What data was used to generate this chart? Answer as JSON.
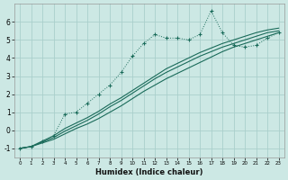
{
  "xlabel": "Humidex (Indice chaleur)",
  "xlim": [
    -0.5,
    23.5
  ],
  "ylim": [
    -1.5,
    7.0
  ],
  "xticks": [
    0,
    1,
    2,
    3,
    4,
    5,
    6,
    7,
    8,
    9,
    10,
    11,
    12,
    13,
    14,
    15,
    16,
    17,
    18,
    19,
    20,
    21,
    22,
    23
  ],
  "yticks": [
    -1,
    0,
    1,
    2,
    3,
    4,
    5,
    6
  ],
  "bg_color": "#cce8e4",
  "grid_color": "#aacfcc",
  "line_color": "#1a6b5a",
  "dotted_x": [
    0,
    1,
    2,
    3,
    4,
    5,
    6,
    7,
    8,
    9,
    10,
    11,
    12,
    13,
    14,
    15,
    16,
    17,
    18,
    19,
    20,
    21,
    22,
    23
  ],
  "dotted_y": [
    -1.0,
    -0.9,
    -0.6,
    -0.3,
    0.9,
    1.0,
    1.5,
    2.0,
    2.5,
    3.2,
    4.1,
    4.8,
    5.3,
    5.1,
    5.1,
    5.0,
    5.3,
    6.6,
    5.4,
    4.7,
    4.6,
    4.7,
    5.1,
    5.4
  ],
  "line1_x": [
    0,
    1,
    2,
    3,
    4,
    5,
    6,
    7,
    8,
    9,
    10,
    11,
    12,
    13,
    14,
    15,
    16,
    17,
    18,
    19,
    20,
    21,
    22,
    23
  ],
  "line1_y": [
    -1.0,
    -0.9,
    -0.7,
    -0.5,
    -0.2,
    0.1,
    0.35,
    0.65,
    1.0,
    1.35,
    1.75,
    2.15,
    2.5,
    2.85,
    3.15,
    3.45,
    3.75,
    4.05,
    4.35,
    4.6,
    4.8,
    5.0,
    5.2,
    5.4
  ],
  "line2_x": [
    0,
    1,
    2,
    3,
    4,
    5,
    6,
    7,
    8,
    9,
    10,
    11,
    12,
    13,
    14,
    15,
    16,
    17,
    18,
    19,
    20,
    21,
    22,
    23
  ],
  "line2_y": [
    -1.0,
    -0.9,
    -0.65,
    -0.4,
    -0.05,
    0.25,
    0.55,
    0.9,
    1.3,
    1.65,
    2.05,
    2.45,
    2.85,
    3.2,
    3.5,
    3.8,
    4.1,
    4.35,
    4.6,
    4.8,
    5.0,
    5.2,
    5.4,
    5.5
  ],
  "line3_x": [
    0,
    1,
    2,
    3,
    4,
    5,
    6,
    7,
    8,
    9,
    10,
    11,
    12,
    13,
    14,
    15,
    16,
    17,
    18,
    19,
    20,
    21,
    22,
    23
  ],
  "line3_y": [
    -1.0,
    -0.9,
    -0.6,
    -0.3,
    0.1,
    0.4,
    0.7,
    1.05,
    1.45,
    1.8,
    2.2,
    2.6,
    3.0,
    3.4,
    3.7,
    4.0,
    4.3,
    4.55,
    4.8,
    5.0,
    5.2,
    5.4,
    5.55,
    5.65
  ]
}
